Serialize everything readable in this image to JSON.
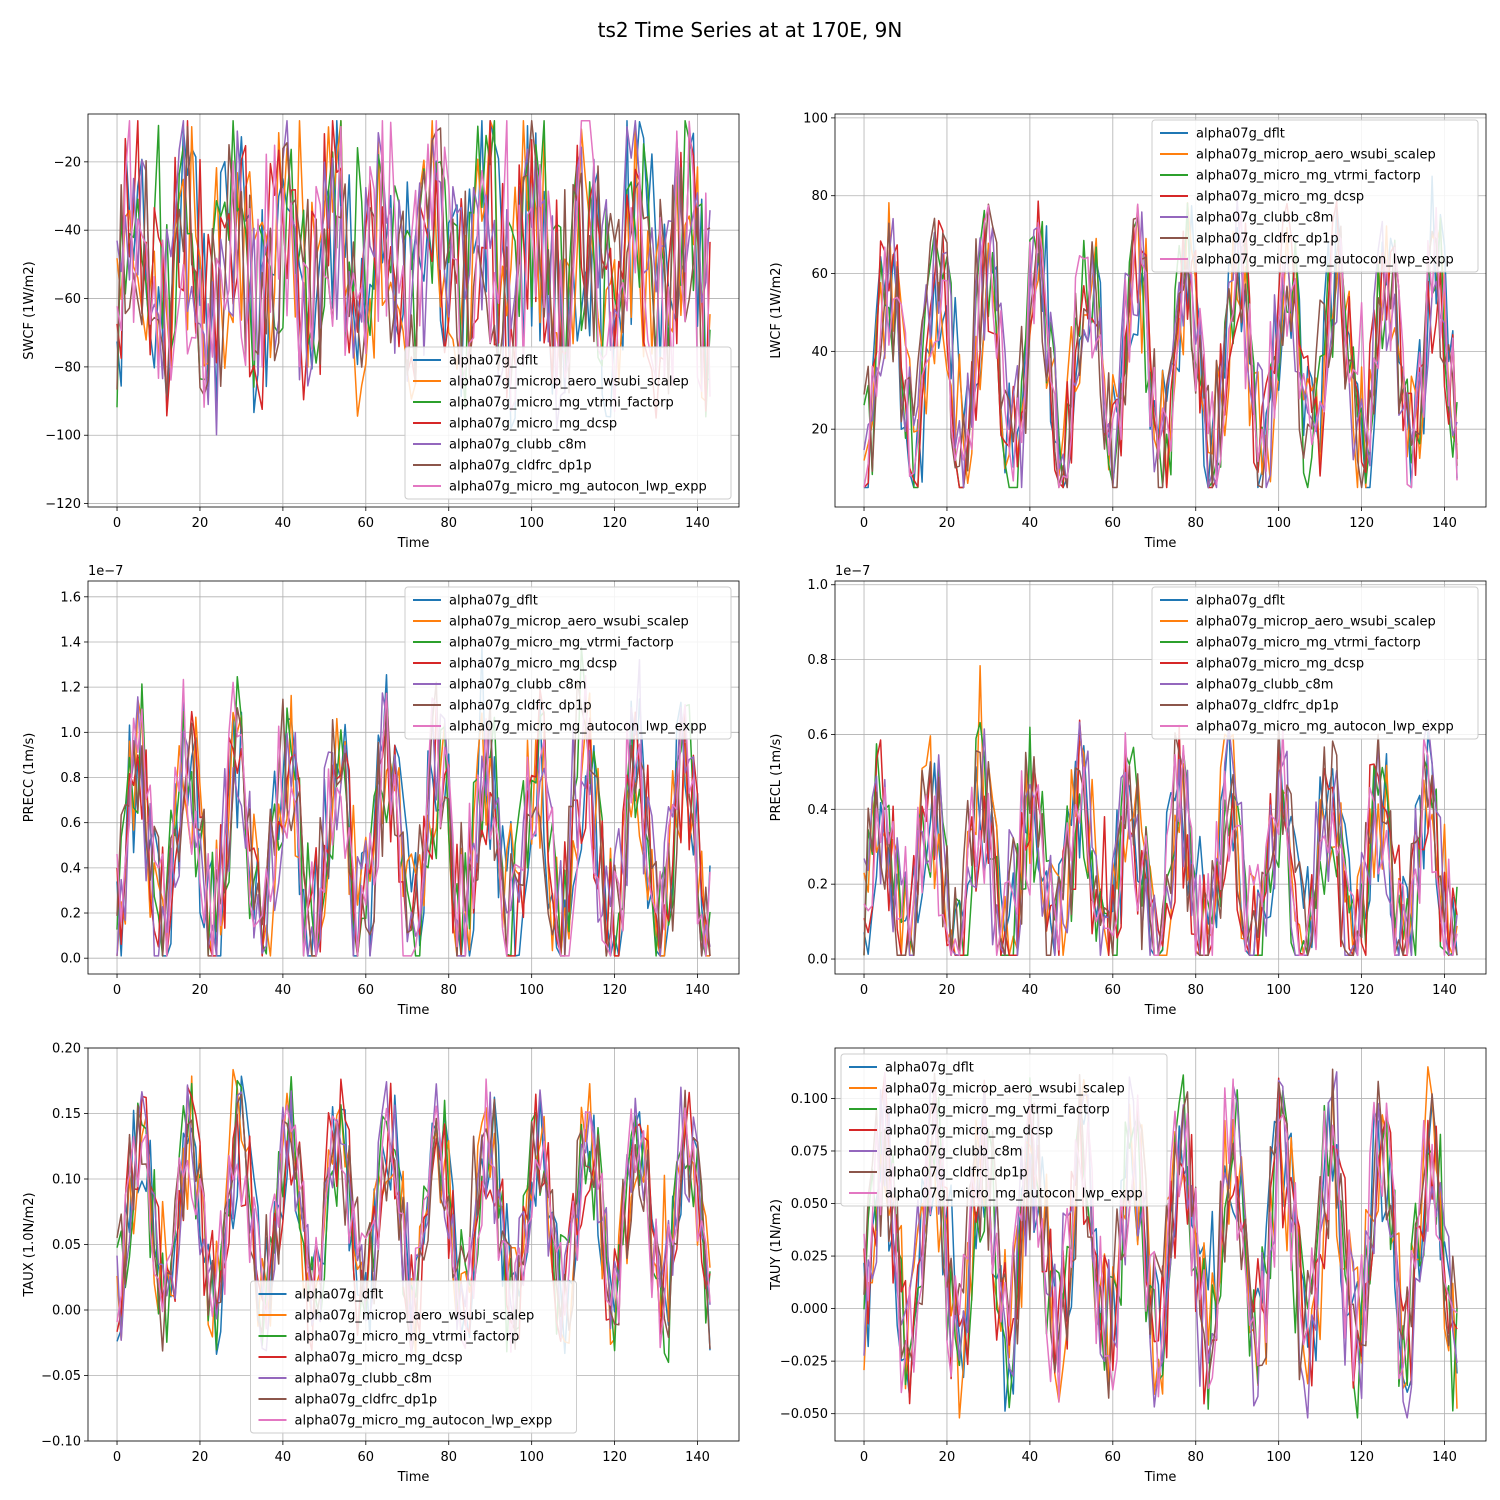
{
  "figure_title": "ts2 Time Series at at 170E, 9N",
  "series_names": [
    "alpha07g_dflt",
    "alpha07g_microp_aero_wsubi_scalep",
    "alpha07g_micro_mg_vtrmi_factorp",
    "alpha07g_micro_mg_dcsp",
    "alpha07g_clubb_c8m",
    "alpha07g_cldfrc_dp1p",
    "alpha07g_micro_mg_autocon_lwp_expp"
  ],
  "series_colors": [
    "#1f77b4",
    "#ff7f0e",
    "#2ca02c",
    "#d62728",
    "#9467bd",
    "#8c564b",
    "#e377c2"
  ],
  "chart_data": [
    {
      "type": "line",
      "title": "",
      "xlabel": "Time",
      "ylabel": "SWCF (1W/m2)",
      "xlim": [
        -7,
        150
      ],
      "ylim": [
        -121,
        -6
      ],
      "xticks": [
        0,
        20,
        40,
        60,
        80,
        100,
        120,
        140
      ],
      "yticks": [
        -120,
        -100,
        -80,
        -60,
        -40,
        -20
      ],
      "offset_label": "",
      "legend_loc": "lower-right",
      "grid": true,
      "approx": {
        "base": -50,
        "amp": 15,
        "noise": 34,
        "clamp": [
          -114,
          -8
        ],
        "spike": 0.08
      }
    },
    {
      "type": "line",
      "title": "",
      "xlabel": "Time",
      "ylabel": "LWCF (1W/m2)",
      "xlim": [
        -7,
        150
      ],
      "ylim": [
        0,
        101
      ],
      "xticks": [
        0,
        20,
        40,
        60,
        80,
        100,
        120,
        140
      ],
      "yticks": [
        20,
        40,
        60,
        80,
        100
      ],
      "offset_label": "",
      "legend_loc": "upper-right",
      "grid": true,
      "approx": {
        "base": 38,
        "amp": 22,
        "noise": 20,
        "clamp": [
          5,
          85
        ],
        "spike": 0.05
      }
    },
    {
      "type": "line",
      "title": "",
      "xlabel": "Time",
      "ylabel": "PRECC (1m/s)",
      "xlim": [
        -7,
        150
      ],
      "ylim": [
        -0.07,
        1.67
      ],
      "xticks": [
        0,
        20,
        40,
        60,
        80,
        100,
        120,
        140
      ],
      "yticks": [
        0.0,
        0.2,
        0.4,
        0.6,
        0.8,
        1.0,
        1.2,
        1.4,
        1.6
      ],
      "offset_label": "1e−7",
      "legend_loc": "upper-right",
      "grid": true,
      "approx": {
        "base": 0.5,
        "amp": 0.38,
        "noise": 0.38,
        "clamp": [
          0.01,
          1.5
        ],
        "spike": 0.06
      }
    },
    {
      "type": "line",
      "title": "",
      "xlabel": "Time",
      "ylabel": "PRECL (1m/s)",
      "xlim": [
        -7,
        150
      ],
      "ylim": [
        -0.04,
        1.01
      ],
      "xticks": [
        0,
        20,
        40,
        60,
        80,
        100,
        120,
        140
      ],
      "yticks": [
        0.0,
        0.2,
        0.4,
        0.6,
        0.8,
        1.0
      ],
      "offset_label": "1e−7",
      "legend_loc": "upper-right",
      "grid": true,
      "approx": {
        "base": 0.22,
        "amp": 0.2,
        "noise": 0.22,
        "clamp": [
          0.01,
          0.9
        ],
        "spike": 0.08
      }
    },
    {
      "type": "line",
      "title": "",
      "xlabel": "Time",
      "ylabel": "TAUX (1.0N/m2)",
      "xlim": [
        -7,
        150
      ],
      "ylim": [
        -0.1,
        0.2
      ],
      "xticks": [
        0,
        20,
        40,
        60,
        80,
        100,
        120,
        140
      ],
      "yticks": [
        -0.1,
        -0.05,
        0.0,
        0.05,
        0.1,
        0.15,
        0.2
      ],
      "offset_label": "",
      "legend_loc": "lower-center",
      "grid": true,
      "approx": {
        "base": 0.07,
        "amp": 0.06,
        "noise": 0.05,
        "clamp": [
          -0.095,
          0.193
        ],
        "spike": 0.05
      }
    },
    {
      "type": "line",
      "title": "",
      "xlabel": "Time",
      "ylabel": "TAUY (1N/m2)",
      "xlim": [
        -7,
        150
      ],
      "ylim": [
        -0.063,
        0.124
      ],
      "xticks": [
        0,
        20,
        40,
        60,
        80,
        100,
        120,
        140
      ],
      "yticks": [
        -0.05,
        -0.025,
        0.0,
        0.025,
        0.05,
        0.075,
        0.1
      ],
      "offset_label": "",
      "legend_loc": "upper-left",
      "grid": true,
      "approx": {
        "base": 0.03,
        "amp": 0.045,
        "noise": 0.04,
        "clamp": [
          -0.052,
          0.115
        ],
        "spike": 0.05
      }
    }
  ]
}
